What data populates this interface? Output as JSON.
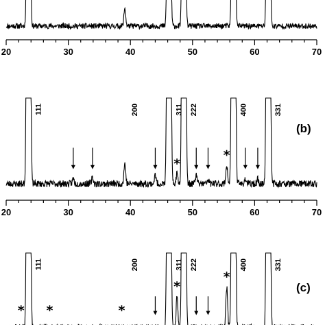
{
  "chart_data": [
    {
      "type": "line",
      "panel": "a",
      "panel_label": "",
      "xlim": [
        20,
        70
      ],
      "xticks": [
        "20",
        "30",
        "40",
        "50",
        "60",
        "70"
      ],
      "peaks": [
        {
          "x": 23.6,
          "height": "off-scale"
        },
        {
          "x": 39.1,
          "height": 0.55
        },
        {
          "x": 46.2,
          "height": "off-scale"
        },
        {
          "x": 48.6,
          "height": "off-scale"
        },
        {
          "x": 56.6,
          "height": "off-scale"
        },
        {
          "x": 62.2,
          "height": "off-scale"
        }
      ],
      "peak_labels": [],
      "arrows": [],
      "stars": []
    },
    {
      "type": "line",
      "panel": "b",
      "panel_label": "(b)",
      "xlim": [
        20,
        70
      ],
      "xticks": [
        "20",
        "30",
        "40",
        "50",
        "60",
        "70"
      ],
      "peaks": [
        {
          "x": 23.6,
          "height": "off-scale"
        },
        {
          "x": 30.8,
          "height": 0.06
        },
        {
          "x": 33.9,
          "height": 0.07
        },
        {
          "x": 39.1,
          "height": 0.24
        },
        {
          "x": 44.0,
          "height": 0.1
        },
        {
          "x": 46.2,
          "height": "off-scale"
        },
        {
          "x": 47.5,
          "height": 0.12
        },
        {
          "x": 48.6,
          "height": "off-scale"
        },
        {
          "x": 50.6,
          "height": 0.1
        },
        {
          "x": 52.5,
          "height": 0.05
        },
        {
          "x": 55.5,
          "height": 0.22
        },
        {
          "x": 56.6,
          "height": "off-scale"
        },
        {
          "x": 58.5,
          "height": 0.06
        },
        {
          "x": 60.5,
          "height": 0.05
        },
        {
          "x": 62.2,
          "height": "off-scale"
        }
      ],
      "peak_labels": [
        {
          "x": 23.6,
          "text": "111"
        },
        {
          "x": 39.1,
          "text": "200"
        },
        {
          "x": 46.2,
          "text": "311"
        },
        {
          "x": 48.6,
          "text": "222"
        },
        {
          "x": 56.6,
          "text": "400"
        },
        {
          "x": 62.2,
          "text": "331"
        }
      ],
      "arrows": [
        30.8,
        33.9,
        44.0,
        50.6,
        52.5,
        58.5,
        60.5
      ],
      "stars": [
        47.5,
        55.5
      ]
    },
    {
      "type": "line",
      "panel": "c",
      "panel_label": "(c)",
      "xlim": [
        20,
        70
      ],
      "xticks": [],
      "peaks": [
        {
          "x": 23.6,
          "height": "off-scale"
        },
        {
          "x": 46.2,
          "height": "off-scale"
        },
        {
          "x": 47.5,
          "height": 0.42
        },
        {
          "x": 48.6,
          "height": "off-scale"
        },
        {
          "x": 55.5,
          "height": 0.55
        },
        {
          "x": 56.6,
          "height": "off-scale"
        },
        {
          "x": 62.2,
          "height": "off-scale"
        }
      ],
      "peak_labels": [
        {
          "x": 23.6,
          "text": "111"
        },
        {
          "x": 39.1,
          "text": "200"
        },
        {
          "x": 46.2,
          "text": "311"
        },
        {
          "x": 48.6,
          "text": "222"
        },
        {
          "x": 56.6,
          "text": "400"
        },
        {
          "x": 62.2,
          "text": "331"
        }
      ],
      "arrows": [
        44.0,
        50.6,
        52.5
      ],
      "stars": [
        22.4,
        27.0,
        38.6,
        47.5,
        55.5
      ]
    }
  ]
}
